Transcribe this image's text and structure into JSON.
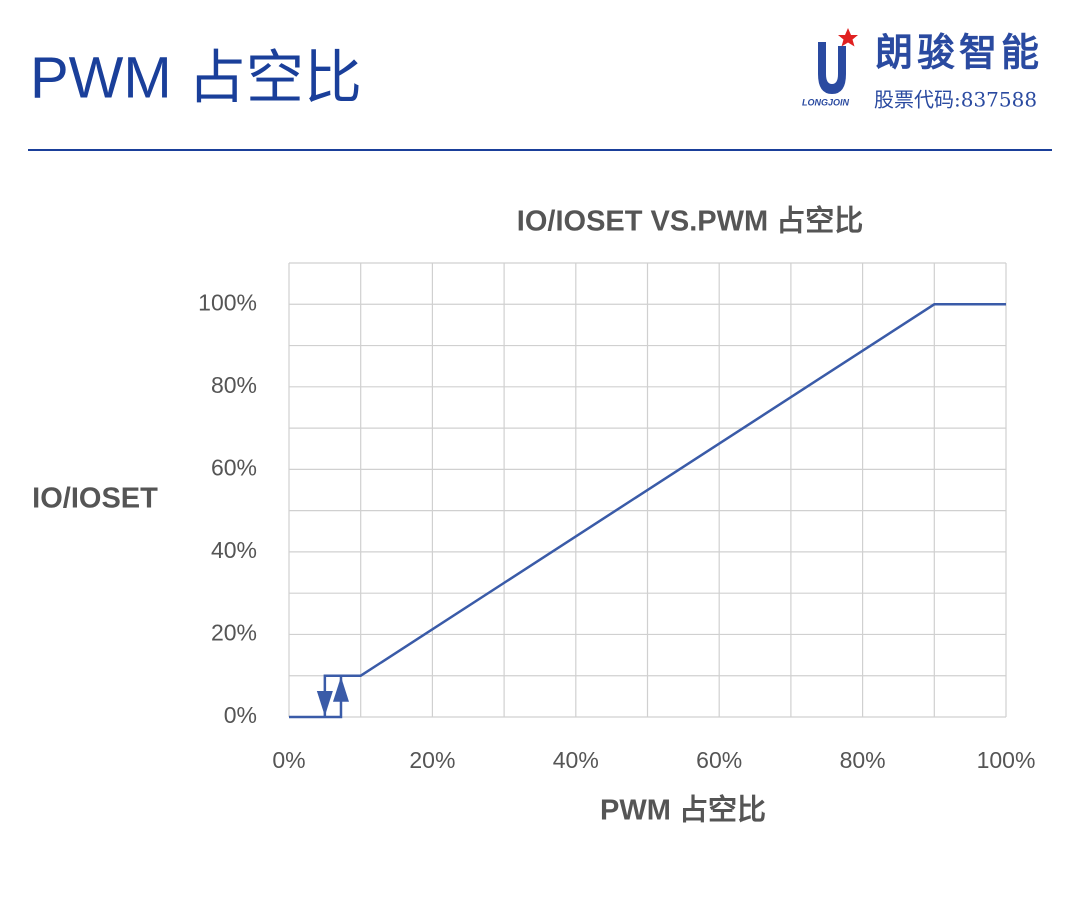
{
  "header": {
    "title": "PWM 占空比",
    "brand": "朗骏智能",
    "brand_en": "LONGJOIN",
    "stock_code": "股票代码:837588"
  },
  "chart_data": {
    "type": "line",
    "title": "IO/IOSET VS.PWM  占空比",
    "x_label": "PWM 占空比",
    "y_label": "IO/IOSET",
    "xlim": [
      0,
      100
    ],
    "ylim": [
      0,
      110
    ],
    "xticks": [
      {
        "value": 0,
        "label": "0%"
      },
      {
        "value": 20,
        "label": "20%"
      },
      {
        "value": 40,
        "label": "40%"
      },
      {
        "value": 60,
        "label": "60%"
      },
      {
        "value": 80,
        "label": "80%"
      },
      {
        "value": 100,
        "label": "100%"
      }
    ],
    "yticks": [
      {
        "value": 0,
        "label": "0%"
      },
      {
        "value": 20,
        "label": "20%"
      },
      {
        "value": 40,
        "label": "40%"
      },
      {
        "value": 60,
        "label": "60%"
      },
      {
        "value": 80,
        "label": "80%"
      },
      {
        "value": 100,
        "label": "100%"
      }
    ],
    "xgrid": [
      0,
      10,
      20,
      30,
      40,
      50,
      60,
      70,
      80,
      90,
      100
    ],
    "ygrid": [
      0,
      10,
      20,
      30,
      40,
      50,
      60,
      70,
      80,
      90,
      100,
      110
    ],
    "grid": true,
    "series": [
      {
        "color": "#3a5ba8",
        "arrow": "up",
        "x": [
          0,
          7.25,
          7.25,
          10,
          90,
          100
        ],
        "values": [
          0,
          0,
          10,
          10,
          100,
          100
        ]
      },
      {
        "color": "#3a5ba8",
        "arrow": "down",
        "x": [
          7.25,
          5,
          5
        ],
        "values": [
          10,
          10,
          0
        ]
      }
    ]
  }
}
